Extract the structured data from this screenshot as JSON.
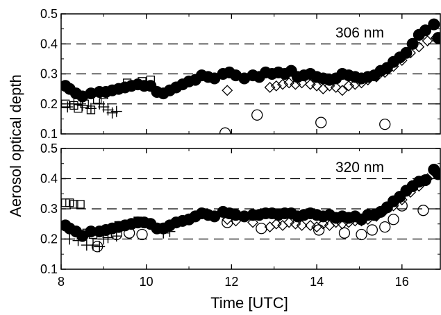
{
  "chart_data": {
    "type": "scatter",
    "ylabel": "Aerosol optical depth",
    "xlabel": "Time [UTC]",
    "xlim": [
      8,
      16.9
    ],
    "x_ticks": [
      "8",
      "10",
      "12",
      "14",
      "16"
    ],
    "x_tick_values": [
      8,
      10,
      12,
      14,
      16
    ],
    "grid": "dashed horizontal lines at 0.2, 0.3, 0.4",
    "colors": {
      "marker_stroke": "#000000",
      "filled": "#000000",
      "open": "#ffffff"
    },
    "panels": [
      {
        "label": "306 nm",
        "ylim": [
          0.1,
          0.5
        ],
        "y_ticks": [
          "0.1",
          "0.2",
          "0.3",
          "0.4",
          "0.5"
        ],
        "y_tick_values": [
          0.1,
          0.2,
          0.3,
          0.4,
          0.5
        ],
        "grid_y": [
          0.2,
          0.3,
          0.4
        ],
        "series": [
          {
            "marker": "filled-circle",
            "points": [
              [
                8.1,
                0.26
              ],
              [
                8.2,
                0.25
              ],
              [
                8.35,
                0.235
              ],
              [
                8.5,
                0.225
              ],
              [
                8.7,
                0.235
              ],
              [
                8.9,
                0.24
              ],
              [
                9.05,
                0.24
              ],
              [
                9.2,
                0.245
              ],
              [
                9.35,
                0.25
              ],
              [
                9.5,
                0.255
              ],
              [
                9.65,
                0.26
              ],
              [
                9.8,
                0.265
              ],
              [
                9.95,
                0.26
              ],
              [
                10.1,
                0.26
              ],
              [
                10.25,
                0.24
              ],
              [
                10.4,
                0.235
              ],
              [
                10.55,
                0.245
              ],
              [
                10.7,
                0.255
              ],
              [
                10.85,
                0.265
              ],
              [
                11.0,
                0.275
              ],
              [
                11.15,
                0.28
              ],
              [
                11.3,
                0.295
              ],
              [
                11.45,
                0.29
              ],
              [
                11.6,
                0.285
              ],
              [
                11.8,
                0.3
              ],
              [
                11.95,
                0.305
              ],
              [
                12.1,
                0.295
              ],
              [
                12.3,
                0.285
              ],
              [
                12.5,
                0.295
              ],
              [
                12.65,
                0.29
              ],
              [
                12.8,
                0.305
              ],
              [
                12.95,
                0.3
              ],
              [
                13.1,
                0.305
              ],
              [
                13.25,
                0.3
              ],
              [
                13.4,
                0.31
              ],
              [
                13.55,
                0.29
              ],
              [
                13.7,
                0.295
              ],
              [
                13.85,
                0.3
              ],
              [
                14.0,
                0.29
              ],
              [
                14.15,
                0.285
              ],
              [
                14.3,
                0.28
              ],
              [
                14.45,
                0.285
              ],
              [
                14.6,
                0.3
              ],
              [
                14.75,
                0.295
              ],
              [
                14.9,
                0.29
              ],
              [
                15.05,
                0.285
              ],
              [
                15.2,
                0.29
              ],
              [
                15.35,
                0.295
              ],
              [
                15.5,
                0.31
              ],
              [
                15.65,
                0.32
              ],
              [
                15.8,
                0.34
              ],
              [
                15.95,
                0.355
              ],
              [
                16.1,
                0.37
              ],
              [
                16.25,
                0.4
              ],
              [
                16.4,
                0.43
              ],
              [
                16.55,
                0.445
              ],
              [
                16.75,
                0.465
              ],
              [
                16.85,
                0.42
              ]
            ]
          },
          {
            "marker": "open-square",
            "points": [
              [
                8.1,
                0.2
              ],
              [
                8.3,
                0.195
              ],
              [
                8.4,
                0.185
              ],
              [
                8.55,
                0.2
              ],
              [
                8.7,
                0.18
              ],
              [
                8.85,
                0.215
              ],
              [
                9.0,
                0.23
              ],
              [
                9.3,
                0.25
              ],
              [
                9.55,
                0.27
              ],
              [
                9.75,
                0.265
              ],
              [
                9.9,
                0.275
              ],
              [
                10.1,
                0.28
              ]
            ]
          },
          {
            "marker": "plus",
            "points": [
              [
                8.15,
                0.19
              ],
              [
                8.3,
                0.2
              ],
              [
                8.5,
                0.195
              ],
              [
                8.7,
                0.185
              ],
              [
                8.9,
                0.2
              ],
              [
                9.0,
                0.19
              ],
              [
                9.1,
                0.18
              ],
              [
                9.2,
                0.17
              ],
              [
                9.3,
                0.175
              ]
            ]
          },
          {
            "marker": "open-diamond",
            "points": [
              [
                11.9,
                0.245
              ],
              [
                12.9,
                0.255
              ],
              [
                13.05,
                0.26
              ],
              [
                13.2,
                0.265
              ],
              [
                13.35,
                0.27
              ],
              [
                13.5,
                0.265
              ],
              [
                13.65,
                0.27
              ],
              [
                13.85,
                0.265
              ],
              [
                14.0,
                0.26
              ],
              [
                14.15,
                0.25
              ],
              [
                14.3,
                0.26
              ],
              [
                14.45,
                0.255
              ],
              [
                14.6,
                0.245
              ],
              [
                14.75,
                0.26
              ],
              [
                14.9,
                0.265
              ],
              [
                15.05,
                0.27
              ],
              [
                15.2,
                0.28
              ],
              [
                15.4,
                0.29
              ],
              [
                15.6,
                0.305
              ],
              [
                15.8,
                0.325
              ],
              [
                16.0,
                0.345
              ],
              [
                16.2,
                0.37
              ],
              [
                16.4,
                0.39
              ],
              [
                16.6,
                0.41
              ],
              [
                16.8,
                0.42
              ]
            ]
          },
          {
            "marker": "open-circle",
            "points": [
              [
                11.85,
                0.103
              ],
              [
                12.6,
                0.163
              ],
              [
                14.1,
                0.138
              ],
              [
                15.6,
                0.132
              ]
            ]
          }
        ]
      },
      {
        "label": "320 nm",
        "ylim": [
          0.1,
          0.5
        ],
        "y_ticks": [
          "0.1",
          "0.2",
          "0.3",
          "0.4",
          "0.5"
        ],
        "y_tick_values": [
          0.1,
          0.2,
          0.3,
          0.4,
          0.5
        ],
        "grid_y": [
          0.2,
          0.3,
          0.4
        ],
        "series": [
          {
            "marker": "filled-circle",
            "points": [
              [
                8.1,
                0.245
              ],
              [
                8.2,
                0.235
              ],
              [
                8.35,
                0.225
              ],
              [
                8.5,
                0.21
              ],
              [
                8.7,
                0.225
              ],
              [
                8.9,
                0.225
              ],
              [
                9.05,
                0.23
              ],
              [
                9.2,
                0.235
              ],
              [
                9.35,
                0.24
              ],
              [
                9.5,
                0.245
              ],
              [
                9.65,
                0.25
              ],
              [
                9.8,
                0.255
              ],
              [
                9.95,
                0.255
              ],
              [
                10.1,
                0.25
              ],
              [
                10.25,
                0.235
              ],
              [
                10.4,
                0.235
              ],
              [
                10.55,
                0.245
              ],
              [
                10.7,
                0.255
              ],
              [
                10.85,
                0.26
              ],
              [
                11.0,
                0.265
              ],
              [
                11.15,
                0.275
              ],
              [
                11.3,
                0.285
              ],
              [
                11.45,
                0.28
              ],
              [
                11.6,
                0.275
              ],
              [
                11.8,
                0.29
              ],
              [
                11.95,
                0.285
              ],
              [
                12.1,
                0.28
              ],
              [
                12.3,
                0.275
              ],
              [
                12.5,
                0.28
              ],
              [
                12.65,
                0.28
              ],
              [
                12.8,
                0.285
              ],
              [
                12.95,
                0.285
              ],
              [
                13.1,
                0.28
              ],
              [
                13.25,
                0.285
              ],
              [
                13.4,
                0.285
              ],
              [
                13.55,
                0.275
              ],
              [
                13.7,
                0.28
              ],
              [
                13.85,
                0.285
              ],
              [
                14.0,
                0.28
              ],
              [
                14.15,
                0.275
              ],
              [
                14.3,
                0.28
              ],
              [
                14.45,
                0.27
              ],
              [
                14.6,
                0.275
              ],
              [
                14.75,
                0.27
              ],
              [
                14.9,
                0.275
              ],
              [
                15.05,
                0.265
              ],
              [
                15.2,
                0.28
              ],
              [
                15.35,
                0.28
              ],
              [
                15.5,
                0.29
              ],
              [
                15.65,
                0.305
              ],
              [
                15.8,
                0.325
              ],
              [
                15.95,
                0.34
              ],
              [
                16.1,
                0.36
              ],
              [
                16.25,
                0.375
              ],
              [
                16.4,
                0.39
              ],
              [
                16.55,
                0.395
              ],
              [
                16.75,
                0.43
              ],
              [
                16.85,
                0.415
              ]
            ]
          },
          {
            "marker": "open-square",
            "points": [
              [
                8.1,
                0.32
              ],
              [
                8.2,
                0.32
              ],
              [
                8.3,
                0.315
              ],
              [
                8.45,
                0.315
              ],
              [
                8.6,
                0.22
              ],
              [
                8.75,
                0.215
              ],
              [
                9.1,
                0.23
              ],
              [
                9.35,
                0.245
              ],
              [
                9.6,
                0.25
              ],
              [
                9.8,
                0.26
              ],
              [
                10.0,
                0.255
              ]
            ]
          },
          {
            "marker": "plus",
            "points": [
              [
                8.2,
                0.2
              ],
              [
                8.4,
                0.195
              ],
              [
                8.6,
                0.18
              ],
              [
                8.75,
                0.18
              ],
              [
                8.9,
                0.175
              ],
              [
                9.0,
                0.2
              ],
              [
                9.1,
                0.205
              ],
              [
                9.3,
                0.21
              ],
              [
                10.4,
                0.22
              ],
              [
                10.55,
                0.225
              ]
            ]
          },
          {
            "marker": "open-diamond",
            "points": [
              [
                11.9,
                0.265
              ],
              [
                12.1,
                0.26
              ],
              [
                12.5,
                0.255
              ],
              [
                12.9,
                0.24
              ],
              [
                13.05,
                0.25
              ],
              [
                13.2,
                0.245
              ],
              [
                13.35,
                0.255
              ],
              [
                13.5,
                0.25
              ],
              [
                13.65,
                0.245
              ],
              [
                13.85,
                0.245
              ],
              [
                14.0,
                0.24
              ],
              [
                14.15,
                0.25
              ],
              [
                14.3,
                0.245
              ],
              [
                14.45,
                0.255
              ],
              [
                14.6,
                0.25
              ],
              [
                14.75,
                0.255
              ],
              [
                14.9,
                0.26
              ],
              [
                15.05,
                0.26
              ],
              [
                15.2,
                0.265
              ],
              [
                15.4,
                0.275
              ],
              [
                15.6,
                0.295
              ],
              [
                15.8,
                0.31
              ],
              [
                16.0,
                0.33
              ],
              [
                16.2,
                0.355
              ],
              [
                16.4,
                0.375
              ],
              [
                16.6,
                0.4
              ],
              [
                16.8,
                0.415
              ]
            ]
          },
          {
            "marker": "open-circle",
            "points": [
              [
                8.85,
                0.175
              ],
              [
                9.3,
                0.215
              ],
              [
                9.6,
                0.22
              ],
              [
                9.9,
                0.215
              ],
              [
                11.9,
                0.255
              ],
              [
                12.7,
                0.235
              ],
              [
                14.05,
                0.23
              ],
              [
                14.65,
                0.22
              ],
              [
                15.05,
                0.215
              ],
              [
                15.3,
                0.23
              ],
              [
                15.6,
                0.24
              ],
              [
                15.8,
                0.265
              ],
              [
                16.0,
                0.31
              ],
              [
                16.5,
                0.295
              ]
            ]
          }
        ]
      }
    ]
  }
}
